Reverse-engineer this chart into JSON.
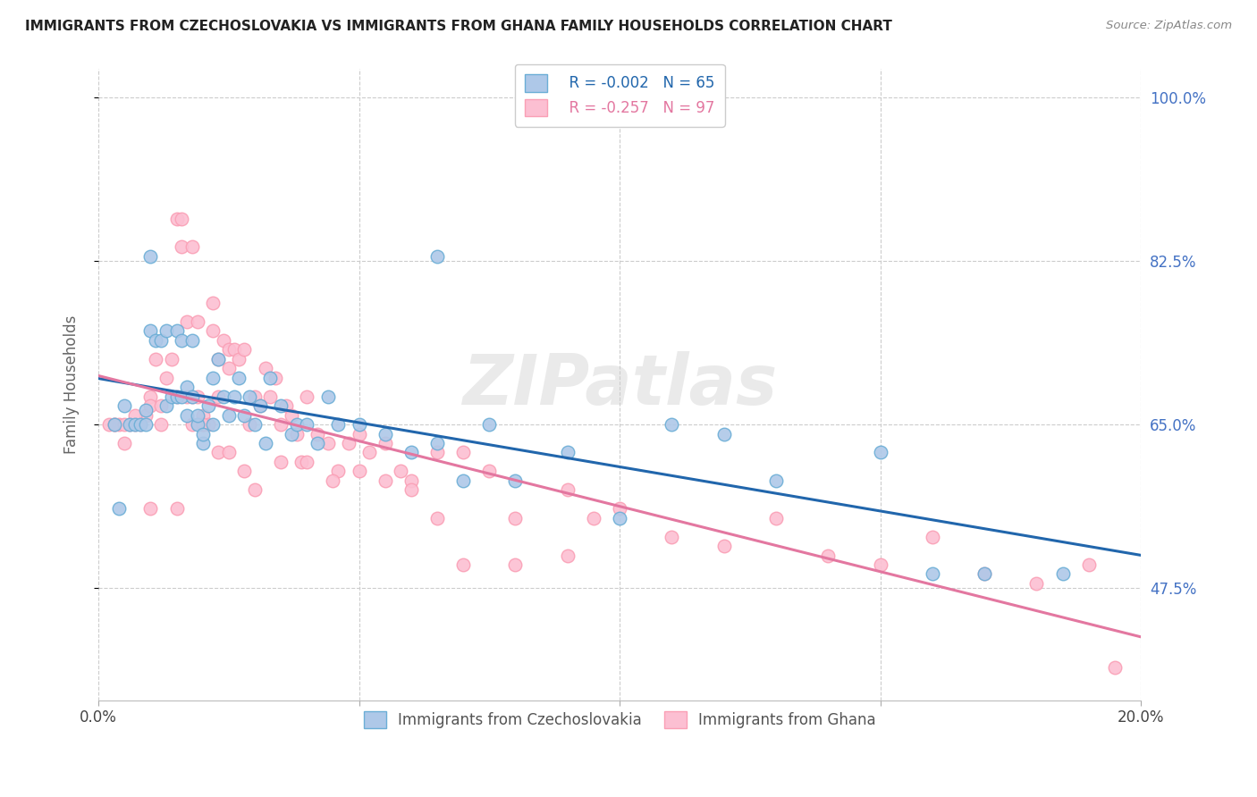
{
  "title": "IMMIGRANTS FROM CZECHOSLOVAKIA VS IMMIGRANTS FROM GHANA FAMILY HOUSEHOLDS CORRELATION CHART",
  "source": "Source: ZipAtlas.com",
  "ylabel": "Family Households",
  "xlim": [
    0.0,
    0.2
  ],
  "ylim": [
    0.355,
    1.03
  ],
  "ytick_labels": [
    "47.5%",
    "65.0%",
    "82.5%",
    "100.0%"
  ],
  "ytick_values": [
    0.475,
    0.65,
    0.825,
    1.0
  ],
  "xtick_positions": [
    0.0,
    0.05,
    0.1,
    0.15,
    0.2
  ],
  "xtick_labels": [
    "0.0%",
    "",
    "",
    "",
    "20.0%"
  ],
  "legend_R1": "R = -0.002",
  "legend_N1": "N = 65",
  "legend_R2": "R = -0.257",
  "legend_N2": "N = 97",
  "color_blue_fill": "#aec8e8",
  "color_blue_edge": "#6baed6",
  "color_blue_line": "#2166ac",
  "color_pink_fill": "#fcbfd2",
  "color_pink_edge": "#fa9fb5",
  "color_pink_line": "#e377a0",
  "watermark": "ZIPatlas",
  "background_color": "#ffffff",
  "grid_color": "#cccccc",
  "blue_scatter_x": [
    0.003,
    0.004,
    0.005,
    0.006,
    0.007,
    0.008,
    0.009,
    0.009,
    0.01,
    0.01,
    0.011,
    0.012,
    0.013,
    0.013,
    0.014,
    0.015,
    0.015,
    0.016,
    0.016,
    0.017,
    0.017,
    0.018,
    0.018,
    0.019,
    0.019,
    0.02,
    0.02,
    0.021,
    0.022,
    0.022,
    0.023,
    0.024,
    0.025,
    0.026,
    0.027,
    0.028,
    0.029,
    0.03,
    0.031,
    0.032,
    0.033,
    0.035,
    0.037,
    0.038,
    0.04,
    0.042,
    0.044,
    0.046,
    0.05,
    0.055,
    0.06,
    0.065,
    0.065,
    0.07,
    0.075,
    0.08,
    0.09,
    0.1,
    0.11,
    0.12,
    0.13,
    0.15,
    0.16,
    0.17,
    0.185
  ],
  "blue_scatter_y": [
    0.65,
    0.56,
    0.67,
    0.65,
    0.65,
    0.65,
    0.65,
    0.665,
    0.75,
    0.83,
    0.74,
    0.74,
    0.75,
    0.67,
    0.68,
    0.75,
    0.68,
    0.68,
    0.74,
    0.66,
    0.69,
    0.74,
    0.68,
    0.65,
    0.66,
    0.63,
    0.64,
    0.67,
    0.65,
    0.7,
    0.72,
    0.68,
    0.66,
    0.68,
    0.7,
    0.66,
    0.68,
    0.65,
    0.67,
    0.63,
    0.7,
    0.67,
    0.64,
    0.65,
    0.65,
    0.63,
    0.68,
    0.65,
    0.65,
    0.64,
    0.62,
    0.63,
    0.83,
    0.59,
    0.65,
    0.59,
    0.62,
    0.55,
    0.65,
    0.64,
    0.59,
    0.62,
    0.49,
    0.49,
    0.49
  ],
  "pink_scatter_x": [
    0.002,
    0.003,
    0.004,
    0.005,
    0.006,
    0.007,
    0.008,
    0.009,
    0.01,
    0.01,
    0.011,
    0.012,
    0.013,
    0.014,
    0.015,
    0.015,
    0.016,
    0.016,
    0.017,
    0.017,
    0.018,
    0.018,
    0.019,
    0.019,
    0.02,
    0.02,
    0.021,
    0.022,
    0.022,
    0.023,
    0.023,
    0.024,
    0.025,
    0.025,
    0.026,
    0.027,
    0.028,
    0.029,
    0.03,
    0.031,
    0.032,
    0.033,
    0.034,
    0.035,
    0.036,
    0.037,
    0.038,
    0.039,
    0.04,
    0.042,
    0.044,
    0.046,
    0.048,
    0.05,
    0.052,
    0.055,
    0.058,
    0.06,
    0.065,
    0.07,
    0.075,
    0.08,
    0.09,
    0.095,
    0.1,
    0.11,
    0.12,
    0.13,
    0.14,
    0.15,
    0.16,
    0.17,
    0.18,
    0.19,
    0.195,
    0.003,
    0.005,
    0.007,
    0.01,
    0.012,
    0.015,
    0.018,
    0.02,
    0.023,
    0.025,
    0.028,
    0.03,
    0.035,
    0.04,
    0.045,
    0.05,
    0.055,
    0.06,
    0.065,
    0.07,
    0.08,
    0.09
  ],
  "pink_scatter_y": [
    0.65,
    0.65,
    0.65,
    0.63,
    0.65,
    0.65,
    0.65,
    0.66,
    0.68,
    0.67,
    0.72,
    0.67,
    0.7,
    0.72,
    0.87,
    0.68,
    0.87,
    0.84,
    0.68,
    0.76,
    0.68,
    0.84,
    0.68,
    0.76,
    0.65,
    0.66,
    0.65,
    0.75,
    0.78,
    0.72,
    0.68,
    0.74,
    0.71,
    0.73,
    0.73,
    0.72,
    0.73,
    0.65,
    0.68,
    0.67,
    0.71,
    0.68,
    0.7,
    0.65,
    0.67,
    0.66,
    0.64,
    0.61,
    0.68,
    0.64,
    0.63,
    0.6,
    0.63,
    0.64,
    0.62,
    0.63,
    0.6,
    0.59,
    0.62,
    0.62,
    0.6,
    0.55,
    0.58,
    0.55,
    0.56,
    0.53,
    0.52,
    0.55,
    0.51,
    0.5,
    0.53,
    0.49,
    0.48,
    0.5,
    0.39,
    0.65,
    0.65,
    0.66,
    0.56,
    0.65,
    0.56,
    0.65,
    0.65,
    0.62,
    0.62,
    0.6,
    0.58,
    0.61,
    0.61,
    0.59,
    0.6,
    0.59,
    0.58,
    0.55,
    0.5,
    0.5,
    0.51
  ]
}
